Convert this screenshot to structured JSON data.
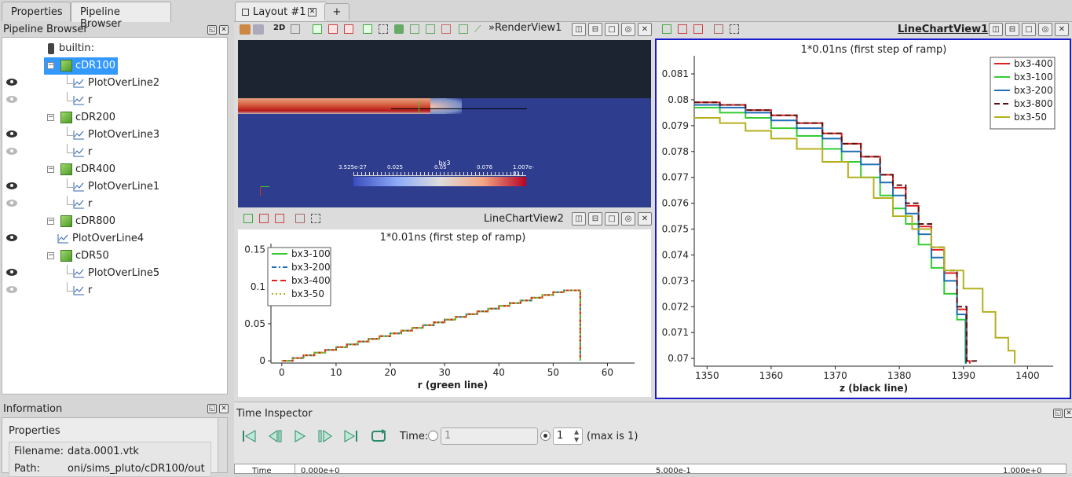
{
  "left_tabs": [
    "Properties",
    "Pipeline Browser"
  ],
  "pipeline": {
    "title": "Pipeline Browser",
    "root": "builtin:",
    "items": [
      {
        "label": "cDR100",
        "kind": "source",
        "selected": true
      },
      {
        "label": "PlotOverLine2",
        "kind": "filter",
        "visible": true
      },
      {
        "label": "r",
        "kind": "filter",
        "visible": false
      },
      {
        "label": "cDR200",
        "kind": "source"
      },
      {
        "label": "PlotOverLine3",
        "kind": "filter",
        "visible": true
      },
      {
        "label": "r",
        "kind": "filter",
        "visible": false
      },
      {
        "label": "cDR400",
        "kind": "source"
      },
      {
        "label": "PlotOverLine1",
        "kind": "filter",
        "visible": true
      },
      {
        "label": "r",
        "kind": "filter",
        "visible": false
      },
      {
        "label": "cDR800",
        "kind": "source"
      },
      {
        "label": "PlotOverLine4",
        "kind": "filter",
        "visible": true
      },
      {
        "label": "cDR50",
        "kind": "source"
      },
      {
        "label": "PlotOverLine5",
        "kind": "filter",
        "visible": true
      },
      {
        "label": "r",
        "kind": "filter",
        "visible": false
      }
    ]
  },
  "information": {
    "title": "Information",
    "section": "Properties",
    "filename_label": "Filename:",
    "filename": "data.0001.vtk",
    "path_label": "Path:",
    "path": "oni/sims_pluto/cDR100/out"
  },
  "layout_tab": "Layout #1",
  "add_tab": "+",
  "renderview": {
    "toolbar_label_2d": "2D",
    "title": "RenderView1",
    "colorbar_title": "bx3",
    "colorbar_ticks": [
      "3.525e-27",
      "0.025",
      "0.05",
      "0.076",
      "1.007e-01"
    ]
  },
  "linechartview2_title": "LineChartView2",
  "linechartview1_title": "LineChartView1",
  "time_inspector": {
    "title": "Time Inspector",
    "time_label": "Time:",
    "time_value": "1",
    "step_value": "1",
    "max_text": "(max is 1)",
    "track_label": "Time",
    "track_ticks": [
      "0.000e+0",
      "5.000e-1",
      "1.000e+0"
    ]
  },
  "colors": {
    "bx3-400": "#e02020",
    "bx3-100": "#33cc33",
    "bx3-200": "#1f6fb5",
    "bx3-800": "#5a1010",
    "bx3-50": "#b5b020",
    "accent": "#3399ff"
  },
  "chart_data": [
    {
      "type": "line",
      "title": "1*0.01ns (first step of ramp)",
      "xlabel": "r (green line)",
      "ylabel": "",
      "xlim": [
        -2,
        65
      ],
      "ylim": [
        -0.003,
        0.158
      ],
      "xticks": [
        "0",
        "10",
        "20",
        "30",
        "40",
        "50",
        "60"
      ],
      "yticks": [
        "0",
        "0.05",
        "0.1",
        "0.15"
      ],
      "legend": "top-left",
      "series": [
        {
          "name": "bx3-100",
          "style": "solid"
        },
        {
          "name": "bx3-200",
          "style": "dashdot"
        },
        {
          "name": "bx3-400",
          "style": "dashed"
        },
        {
          "name": "bx3-50",
          "style": "dotted"
        }
      ],
      "x": [
        0,
        2,
        4,
        6,
        8,
        10,
        12,
        14,
        16,
        18,
        20,
        22,
        24,
        26,
        28,
        30,
        32,
        34,
        36,
        38,
        40,
        42,
        44,
        46,
        48,
        50,
        52,
        54,
        55
      ],
      "values": [
        0,
        0.0037,
        0.0074,
        0.011,
        0.0148,
        0.0185,
        0.0222,
        0.026,
        0.0296,
        0.0333,
        0.037,
        0.0407,
        0.0444,
        0.0481,
        0.0518,
        0.0555,
        0.0592,
        0.063,
        0.0666,
        0.0703,
        0.074,
        0.0777,
        0.0814,
        0.0851,
        0.0888,
        0.0925,
        0.095,
        0.095,
        0
      ]
    },
    {
      "type": "line",
      "title": "1*0.01ns (first step of ramp)",
      "xlabel": "z (black line)",
      "ylabel": "",
      "xlim": [
        1348,
        1404
      ],
      "ylim": [
        0.0697,
        0.0817
      ],
      "xticks": [
        "1350",
        "1360",
        "1370",
        "1380",
        "1390",
        "1400"
      ],
      "yticks": [
        "0.07",
        "0.071",
        "0.072",
        "0.073",
        "0.074",
        "0.075",
        "0.076",
        "0.077",
        "0.078",
        "0.079",
        "0.08",
        "0.081"
      ],
      "legend": "top-right",
      "series": [
        {
          "name": "bx3-400",
          "style": "solid",
          "x": [
            1348,
            1352,
            1356,
            1360,
            1364,
            1368,
            1371,
            1374,
            1377,
            1379,
            1381,
            1383,
            1385,
            1387,
            1389,
            1390.5,
            1391
          ],
          "y": [
            0.0799,
            0.0798,
            0.0796,
            0.0794,
            0.0791,
            0.0787,
            0.0783,
            0.0778,
            0.0771,
            0.0766,
            0.0759,
            0.0751,
            0.0742,
            0.0733,
            0.0719,
            0.0699,
            0.0698
          ]
        },
        {
          "name": "bx3-100",
          "style": "solid",
          "x": [
            1348,
            1352,
            1356,
            1360,
            1364,
            1368,
            1371,
            1374,
            1377,
            1379,
            1381,
            1383,
            1385,
            1387,
            1389,
            1390.3
          ],
          "y": [
            0.0797,
            0.0795,
            0.0793,
            0.0789,
            0.0786,
            0.0781,
            0.0776,
            0.077,
            0.0763,
            0.0758,
            0.0752,
            0.0744,
            0.0735,
            0.0725,
            0.0715,
            0.0698
          ]
        },
        {
          "name": "bx3-200",
          "style": "solid",
          "x": [
            1348,
            1352,
            1356,
            1360,
            1364,
            1368,
            1371,
            1374,
            1377,
            1379,
            1381,
            1383,
            1385,
            1387,
            1389,
            1390.4
          ],
          "y": [
            0.0798,
            0.0797,
            0.0795,
            0.0792,
            0.0789,
            0.0785,
            0.078,
            0.0775,
            0.0768,
            0.0763,
            0.0756,
            0.0748,
            0.0739,
            0.073,
            0.0717,
            0.0698
          ]
        },
        {
          "name": "bx3-800",
          "style": "dashed",
          "x": [
            1348,
            1352,
            1356,
            1360,
            1364,
            1368,
            1371,
            1374,
            1377,
            1379,
            1381,
            1383,
            1385,
            1387,
            1389,
            1390.5,
            1392
          ],
          "y": [
            0.0799,
            0.0798,
            0.0796,
            0.0794,
            0.0791,
            0.0787,
            0.0783,
            0.0778,
            0.0771,
            0.0767,
            0.076,
            0.0752,
            0.0743,
            0.0734,
            0.072,
            0.0699,
            0.0698
          ]
        },
        {
          "name": "bx3-50",
          "style": "solid",
          "x": [
            1348,
            1352,
            1356,
            1360,
            1364,
            1368,
            1372,
            1376,
            1379,
            1382,
            1385,
            1387,
            1390,
            1393,
            1395,
            1397,
            1398
          ],
          "y": [
            0.0793,
            0.0791,
            0.0788,
            0.0785,
            0.0781,
            0.0776,
            0.077,
            0.0762,
            0.0755,
            0.075,
            0.0743,
            0.0734,
            0.0727,
            0.0718,
            0.0708,
            0.0703,
            0.0698
          ]
        }
      ]
    }
  ]
}
